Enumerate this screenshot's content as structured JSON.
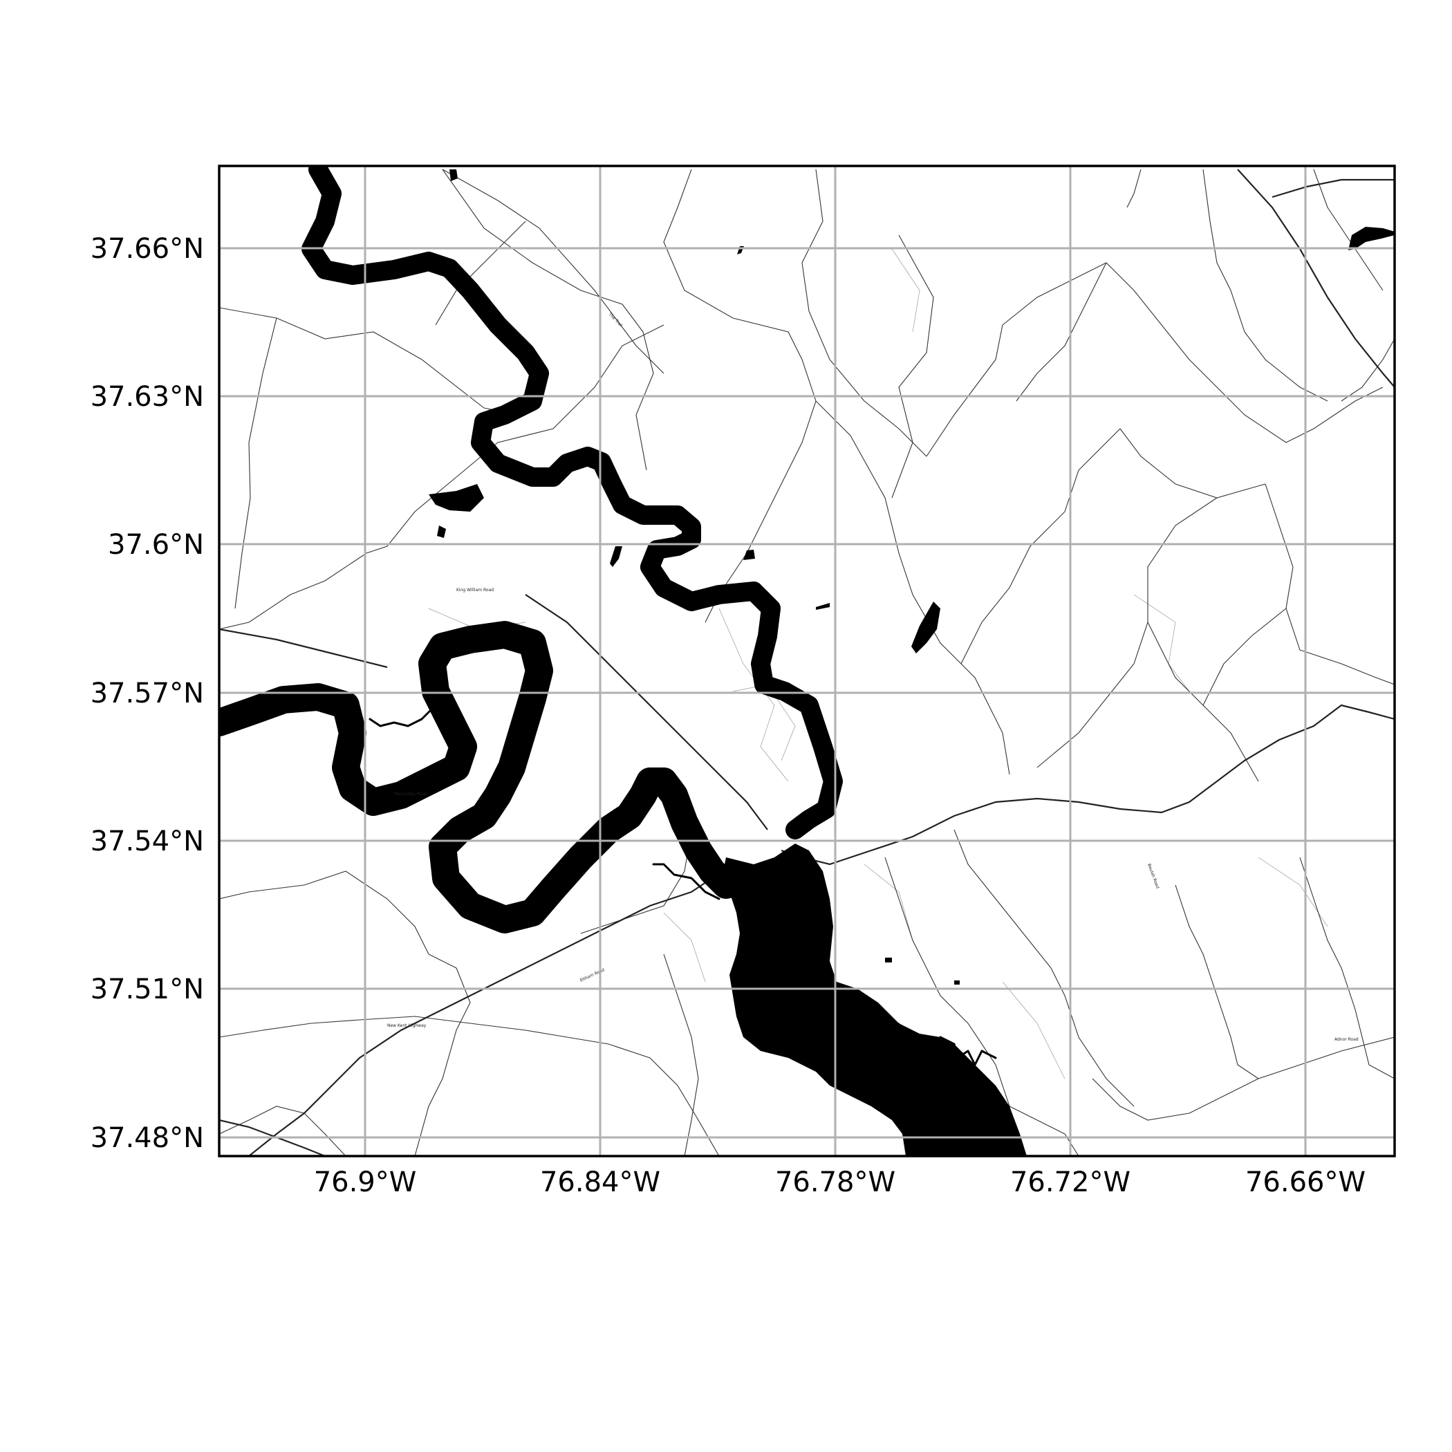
{
  "map": {
    "x_ticks": [
      "76.9°W",
      "76.84°W",
      "76.78°W",
      "76.72°W",
      "76.66°W"
    ],
    "y_ticks": [
      "37.66°N",
      "37.63°N",
      "37.6°N",
      "37.57°N",
      "37.54°N",
      "37.51°N",
      "37.48°N"
    ],
    "road_labels": [
      "The Trail",
      "King William Road",
      "Eltham Road",
      "New Kent Highway",
      "Adnor Road",
      "Beulah Road",
      "Pamunkey River"
    ],
    "colors": {
      "water": "#000000",
      "grid": "#b0b0b0",
      "road": "#333333",
      "background": "#ffffff"
    }
  }
}
